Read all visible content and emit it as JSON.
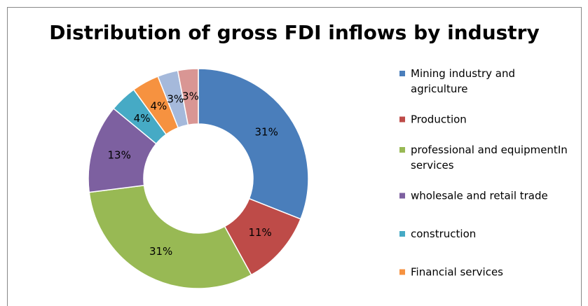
{
  "chart_data": {
    "type": "donut",
    "title": "Distribution of gross FDI inflows by industry",
    "categories": [
      "Mining industry and agriculture",
      "Production",
      "professional and equipmentIn services",
      "wholesale and retail trade",
      "construction",
      "Financial services",
      null,
      null
    ],
    "values": [
      31,
      11,
      31,
      13,
      4,
      4,
      3,
      3
    ],
    "value_labels": [
      "31%",
      "11%",
      "31%",
      "13%",
      "4%",
      "4%",
      "3%",
      "3%"
    ],
    "colors": [
      "#4a7ebb",
      "#be4b48",
      "#98b954",
      "#7d60a0",
      "#46aac5",
      "#f69240",
      "#a5b9db",
      "#d99694"
    ],
    "legend": "right"
  }
}
